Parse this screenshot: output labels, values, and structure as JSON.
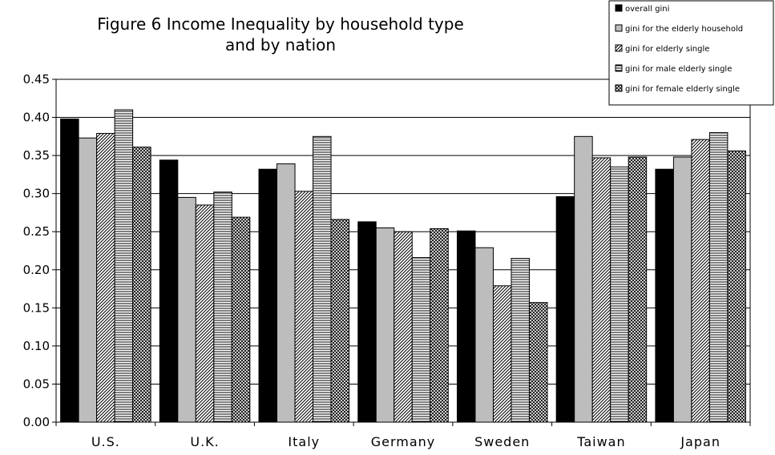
{
  "chart_data": {
    "type": "bar",
    "title": "Figure 6  Income Inequality by household type\nand by nation",
    "categories": [
      "U.S.",
      "U.K.",
      "Italy",
      "Germany",
      "Sweden",
      "Taiwan",
      "Japan"
    ],
    "series": [
      {
        "name": "overall gini",
        "values": [
          0.398,
          0.344,
          0.332,
          0.263,
          0.251,
          0.296,
          0.332
        ]
      },
      {
        "name": "gini for the elderly household",
        "values": [
          0.373,
          0.295,
          0.339,
          0.255,
          0.229,
          0.375,
          0.348
        ]
      },
      {
        "name": "gini for elderly single",
        "values": [
          0.379,
          0.285,
          0.303,
          0.25,
          0.179,
          0.347,
          0.371
        ]
      },
      {
        "name": "gini for male elderly single",
        "values": [
          0.41,
          0.302,
          0.375,
          0.216,
          0.215,
          0.335,
          0.38
        ]
      },
      {
        "name": "gini for female elderly single",
        "values": [
          0.361,
          0.269,
          0.266,
          0.254,
          0.157,
          0.348,
          0.356
        ]
      }
    ],
    "ylim": [
      0,
      0.45
    ],
    "yticks": [
      "0.00",
      "0.05",
      "0.10",
      "0.15",
      "0.20",
      "0.25",
      "0.30",
      "0.35",
      "0.40",
      "0.45"
    ],
    "xlabel": "",
    "ylabel": "",
    "grid": true,
    "legend_position": "top-right",
    "series_patterns": [
      "solid-black",
      "solid-gray",
      "diagonal-hatch",
      "horizontal-lines",
      "crosshatch"
    ]
  }
}
